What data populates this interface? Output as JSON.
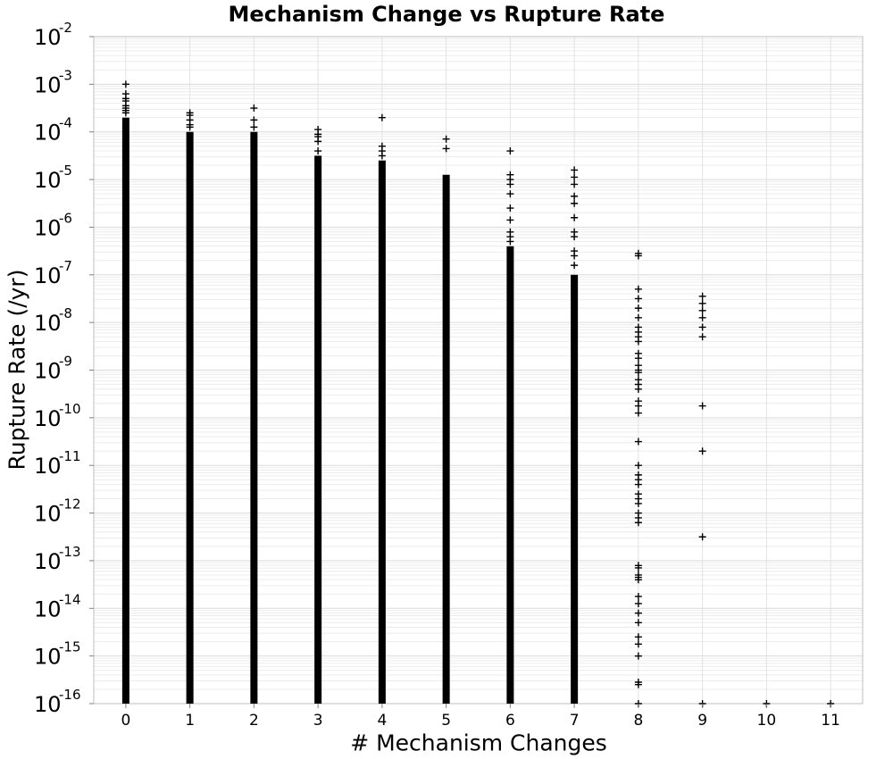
{
  "chart_data": {
    "type": "scatter",
    "title": "Mechanism Change vs Rupture Rate",
    "xlabel": "# Mechanism Changes",
    "ylabel": "Rupture Rate (/yr)",
    "x_ticks": [
      "0",
      "1",
      "2",
      "3",
      "4",
      "5",
      "6",
      "7",
      "8",
      "9",
      "10",
      "11"
    ],
    "y_ticks": [
      {
        "base": "10",
        "exp": "-16"
      },
      {
        "base": "10",
        "exp": "-15"
      },
      {
        "base": "10",
        "exp": "-14"
      },
      {
        "base": "10",
        "exp": "-13"
      },
      {
        "base": "10",
        "exp": "-12"
      },
      {
        "base": "10",
        "exp": "-11"
      },
      {
        "base": "10",
        "exp": "-10"
      },
      {
        "base": "10",
        "exp": "-9"
      },
      {
        "base": "10",
        "exp": "-8"
      },
      {
        "base": "10",
        "exp": "-7"
      },
      {
        "base": "10",
        "exp": "-6"
      },
      {
        "base": "10",
        "exp": "-5"
      },
      {
        "base": "10",
        "exp": "-4"
      },
      {
        "base": "10",
        "exp": "-3"
      },
      {
        "base": "10",
        "exp": "-2"
      }
    ],
    "xlim": [
      -0.5,
      11.5
    ],
    "ylim_log10": [
      -16,
      -2
    ],
    "y_scale": "log",
    "grid": true,
    "marker": "+",
    "marker_color": "#000000",
    "series": [
      {
        "x": 0,
        "dense_log10": [
          -16,
          -3.7
        ],
        "points_log10": [
          -3.0,
          -3.2,
          -3.3,
          -3.35,
          -3.45,
          -3.5,
          -3.55,
          -3.6
        ]
      },
      {
        "x": 1,
        "dense_log10": [
          -16,
          -4.0
        ],
        "points_log10": [
          -3.6,
          -3.65,
          -3.75,
          -3.85,
          -3.9
        ]
      },
      {
        "x": 2,
        "dense_log10": [
          -16,
          -4.0
        ],
        "points_log10": [
          -3.5,
          -3.75,
          -3.9
        ]
      },
      {
        "x": 3,
        "dense_log10": [
          -16,
          -4.5
        ],
        "points_log10": [
          -3.95,
          -4.05,
          -4.1,
          -4.2,
          -4.4
        ]
      },
      {
        "x": 4,
        "dense_log10": [
          -16,
          -4.6
        ],
        "points_log10": [
          -3.7,
          -4.3,
          -4.4,
          -4.5
        ]
      },
      {
        "x": 5,
        "dense_log10": [
          -16,
          -4.9
        ],
        "points_log10": [
          -4.15,
          -4.35
        ]
      },
      {
        "x": 6,
        "dense_log10": [
          -16,
          -6.4
        ],
        "points_log10": [
          -4.4,
          -4.9,
          -5.0,
          -5.1,
          -5.3,
          -5.6,
          -5.85,
          -6.1,
          -6.2,
          -6.3
        ]
      },
      {
        "x": 7,
        "dense_log10": [
          -16,
          -7.0
        ],
        "points_log10": [
          -4.8,
          -4.95,
          -5.1,
          -5.35,
          -5.5,
          -5.8,
          -6.1,
          -6.2,
          -6.5,
          -6.6,
          -6.8
        ]
      },
      {
        "x": 8,
        "points_log10": [
          -16.0,
          -15.6,
          -15.55,
          -15.0,
          -14.75,
          -14.6,
          -14.3,
          -14.1,
          -13.9,
          -13.75,
          -13.4,
          -13.35,
          -13.3,
          -13.15,
          -13.1,
          -12.2,
          -12.1,
          -12.0,
          -11.8,
          -11.7,
          -11.6,
          -11.4,
          -11.3,
          -11.2,
          -11.0,
          -10.5,
          -9.9,
          -9.75,
          -9.65,
          -9.4,
          -9.3,
          -9.2,
          -9.05,
          -9.0,
          -8.9,
          -8.75,
          -8.65,
          -8.4,
          -8.3,
          -8.2,
          -8.1,
          -7.9,
          -7.7,
          -7.5,
          -7.3,
          -6.6,
          -6.55
        ]
      },
      {
        "x": 9,
        "points_log10": [
          -16.0,
          -12.5,
          -10.7,
          -9.75,
          -8.3,
          -8.1,
          -7.9,
          -7.75,
          -7.6,
          -7.45
        ]
      },
      {
        "x": 10,
        "points_log10": [
          -16.0
        ]
      },
      {
        "x": 11,
        "points_log10": [
          -16.0
        ]
      }
    ]
  }
}
